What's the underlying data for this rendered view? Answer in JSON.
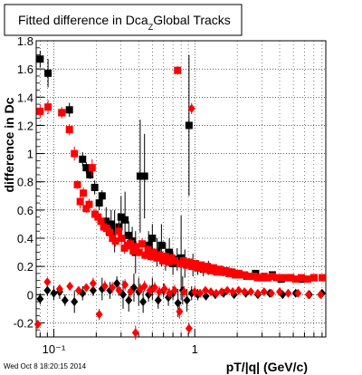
{
  "title": {
    "main": "Fitted difference in Dca",
    "sub": "Z",
    "tail": "Global Tracks"
  },
  "timestamp": "Wed Oct  8 18:20:15 2014",
  "chart_data": {
    "type": "scatter",
    "title": "Fitted difference in Dca_Z Global Tracks",
    "xlabel": "pT/|q| (GeV/c)",
    "ylabel": "difference in Dc",
    "xscale": "log",
    "xlim": [
      0.075,
      8.5
    ],
    "ylim": [
      -0.3,
      1.8
    ],
    "grid": true,
    "xticks": [
      {
        "v": 0.1,
        "label": "10⁻¹"
      },
      {
        "v": 1,
        "label": "1"
      }
    ],
    "yticks": [
      {
        "v": -0.2,
        "label": "-0.2"
      },
      {
        "v": 0,
        "label": "0"
      },
      {
        "v": 0.2,
        "label": "0.2"
      },
      {
        "v": 0.4,
        "label": "0.4"
      },
      {
        "v": 0.6,
        "label": "0.6"
      },
      {
        "v": 0.8,
        "label": "0.8"
      },
      {
        "v": 1,
        "label": "1"
      },
      {
        "v": 1.2,
        "label": "1.2"
      },
      {
        "v": 1.4,
        "label": "1.4"
      },
      {
        "v": 1.6,
        "label": "1.6"
      },
      {
        "v": 1.8,
        "label": "1.8"
      }
    ],
    "series": [
      {
        "marker": "square",
        "color": "#000000",
        "points": [
          [
            0.08,
            1.67,
            0.06
          ],
          [
            0.091,
            1.57,
            0.1
          ],
          [
            0.114,
            1.29,
            0.03
          ],
          [
            0.129,
            1.31,
            0.05
          ],
          [
            0.16,
            0.96,
            0.05
          ],
          [
            0.17,
            0.9,
            0.04
          ],
          [
            0.18,
            0.85,
            0.03
          ],
          [
            0.195,
            0.76,
            0.05
          ],
          [
            0.21,
            0.65,
            0.05
          ],
          [
            0.22,
            0.7,
            0.04
          ],
          [
            0.235,
            0.52,
            0.1
          ],
          [
            0.255,
            0.5,
            0.1
          ],
          [
            0.27,
            0.45,
            0.15
          ],
          [
            0.29,
            0.48,
            0.1
          ],
          [
            0.3,
            0.55,
            0.15
          ],
          [
            0.32,
            0.53,
            0.2
          ],
          [
            0.34,
            0.42,
            0.1
          ],
          [
            0.36,
            0.38,
            0.1
          ],
          [
            0.38,
            0.3,
            0.15
          ],
          [
            0.41,
            0.84,
            0.4
          ],
          [
            0.44,
            0.84,
            0.3
          ],
          [
            0.47,
            0.35,
            0.1
          ],
          [
            0.5,
            0.4,
            0.1
          ],
          [
            0.54,
            0.3,
            0.1
          ],
          [
            0.58,
            0.35,
            0.15
          ],
          [
            0.62,
            0.27,
            0.1
          ],
          [
            0.66,
            0.3,
            0.1
          ],
          [
            0.7,
            0.22,
            0.08
          ],
          [
            0.75,
            0.25,
            0.08
          ],
          [
            0.8,
            0.26,
            0.3
          ],
          [
            0.85,
            0.22,
            0.1
          ],
          [
            0.91,
            1.2,
            0.5
          ],
          [
            0.97,
            0.21,
            0.08
          ],
          [
            1.05,
            0.19,
            0.05
          ],
          [
            1.15,
            0.18,
            0.05
          ],
          [
            1.25,
            0.19,
            0.05
          ],
          [
            1.4,
            0.17,
            0.03
          ],
          [
            1.6,
            0.16,
            0.03
          ],
          [
            1.8,
            0.16,
            0.03
          ],
          [
            2.05,
            0.15,
            0.02
          ],
          [
            2.35,
            0.13,
            0.02
          ],
          [
            2.7,
            0.15,
            0.02
          ],
          [
            3.1,
            0.12,
            0.02
          ],
          [
            3.55,
            0.14,
            0.02
          ],
          [
            4.1,
            0.11,
            0.02
          ],
          [
            4.8,
            0.12,
            0.02
          ],
          [
            5.8,
            0.11,
            0.02
          ],
          [
            7.0,
            0.12,
            0.02
          ]
        ]
      },
      {
        "marker": "square",
        "color": "#ff0000",
        "points": [
          [
            0.08,
            1.3,
            0.05
          ],
          [
            0.091,
            1.33,
            0.05
          ],
          [
            0.114,
            1.29,
            0.04
          ],
          [
            0.129,
            1.17,
            0.04
          ],
          [
            0.14,
            1.0,
            0.05
          ],
          [
            0.147,
            0.78,
            0.03
          ],
          [
            0.154,
            0.66,
            0.05
          ],
          [
            0.162,
            0.72,
            0.04
          ],
          [
            0.17,
            0.61,
            0.03
          ],
          [
            0.178,
            0.64,
            0.04
          ],
          [
            0.187,
            0.9,
            0.06
          ],
          [
            0.196,
            0.57,
            0.04
          ],
          [
            0.206,
            0.55,
            0.03
          ],
          [
            0.216,
            0.52,
            0.03
          ],
          [
            0.226,
            0.48,
            0.03
          ],
          [
            0.237,
            0.47,
            0.03
          ],
          [
            0.249,
            0.44,
            0.03
          ],
          [
            0.261,
            0.4,
            0.03
          ],
          [
            0.274,
            0.38,
            0.04
          ],
          [
            0.288,
            0.45,
            0.05
          ],
          [
            0.302,
            0.4,
            0.04
          ],
          [
            0.317,
            0.33,
            0.04
          ],
          [
            0.333,
            0.35,
            0.04
          ],
          [
            0.349,
            0.36,
            0.04
          ],
          [
            0.366,
            0.31,
            0.03
          ],
          [
            0.384,
            0.34,
            0.04
          ],
          [
            0.403,
            0.3,
            0.03
          ],
          [
            0.423,
            0.36,
            0.04
          ],
          [
            0.444,
            0.28,
            0.03
          ],
          [
            0.466,
            0.32,
            0.03
          ],
          [
            0.489,
            0.27,
            0.03
          ],
          [
            0.513,
            0.3,
            0.03
          ],
          [
            0.538,
            0.26,
            0.03
          ],
          [
            0.565,
            0.28,
            0.03
          ],
          [
            0.593,
            0.24,
            0.03
          ],
          [
            0.622,
            0.27,
            0.03
          ],
          [
            0.653,
            0.23,
            0.03
          ],
          [
            0.685,
            0.26,
            0.03
          ],
          [
            0.719,
            0.24,
            0.03
          ],
          [
            0.755,
            1.59,
            0.03
          ],
          [
            0.792,
            0.22,
            0.03
          ],
          [
            0.831,
            0.24,
            0.03
          ],
          [
            0.872,
            0.21,
            0.03
          ],
          [
            0.915,
            0.23,
            0.03
          ],
          [
            0.96,
            0.2,
            0.02
          ],
          [
            1.01,
            0.22,
            0.02
          ],
          [
            1.06,
            0.19,
            0.02
          ],
          [
            1.11,
            0.21,
            0.02
          ],
          [
            1.17,
            0.18,
            0.02
          ],
          [
            1.23,
            0.2,
            0.02
          ],
          [
            1.29,
            0.17,
            0.02
          ],
          [
            1.36,
            0.19,
            0.02
          ],
          [
            1.43,
            0.16,
            0.02
          ],
          [
            1.5,
            0.18,
            0.02
          ],
          [
            1.58,
            0.16,
            0.02
          ],
          [
            1.66,
            0.17,
            0.02
          ],
          [
            1.75,
            0.15,
            0.02
          ],
          [
            1.84,
            0.16,
            0.02
          ],
          [
            1.94,
            0.14,
            0.02
          ],
          [
            2.04,
            0.15,
            0.02
          ],
          [
            2.15,
            0.14,
            0.02
          ],
          [
            2.26,
            0.14,
            0.02
          ],
          [
            2.38,
            0.13,
            0.02
          ],
          [
            2.51,
            0.13,
            0.02
          ],
          [
            2.64,
            0.13,
            0.02
          ],
          [
            2.78,
            0.12,
            0.02
          ],
          [
            2.93,
            0.12,
            0.02
          ],
          [
            3.1,
            0.13,
            0.02
          ],
          [
            3.3,
            0.12,
            0.02
          ],
          [
            3.55,
            0.13,
            0.02
          ],
          [
            3.8,
            0.12,
            0.02
          ],
          [
            4.1,
            0.12,
            0.02
          ],
          [
            4.4,
            0.12,
            0.02
          ],
          [
            4.8,
            0.12,
            0.02
          ],
          [
            5.2,
            0.11,
            0.02
          ],
          [
            5.7,
            0.12,
            0.02
          ],
          [
            6.3,
            0.11,
            0.02
          ],
          [
            7.0,
            0.12,
            0.02
          ],
          [
            8.0,
            0.12,
            0.02
          ]
        ]
      },
      {
        "marker": "diamond",
        "color": "#000000",
        "points": [
          [
            0.08,
            -0.03,
            0.04
          ],
          [
            0.09,
            0.03,
            0.04
          ],
          [
            0.1,
            0.01,
            0.05
          ],
          [
            0.11,
            0.02,
            0.05
          ],
          [
            0.12,
            -0.04,
            0.04
          ],
          [
            0.14,
            -0.05,
            0.08
          ],
          [
            0.16,
            0.01,
            0.05
          ],
          [
            0.19,
            0.03,
            0.04
          ],
          [
            0.22,
            0.04,
            0.08
          ],
          [
            0.25,
            0.03,
            0.06
          ],
          [
            0.28,
            0.08,
            0.05
          ],
          [
            0.31,
            0.0,
            0.1
          ],
          [
            0.34,
            -0.04,
            0.08
          ],
          [
            0.37,
            0.05,
            0.1
          ],
          [
            0.4,
            0.02,
            0.1
          ],
          [
            0.43,
            -0.05,
            0.08
          ],
          [
            0.47,
            0.0,
            0.05
          ],
          [
            0.5,
            0.04,
            0.08
          ],
          [
            0.55,
            -0.04,
            0.06
          ],
          [
            0.6,
            0.03,
            0.05
          ],
          [
            0.65,
            -0.02,
            0.06
          ],
          [
            0.7,
            0.01,
            0.05
          ],
          [
            0.76,
            -0.06,
            0.1
          ],
          [
            0.82,
            0.03,
            0.1
          ],
          [
            0.88,
            -0.04,
            0.08
          ],
          [
            0.95,
            0.01,
            0.05
          ],
          [
            1.05,
            0.0,
            0.04
          ],
          [
            1.2,
            -0.01,
            0.03
          ],
          [
            1.4,
            0.0,
            0.03
          ],
          [
            1.6,
            0.01,
            0.03
          ],
          [
            1.9,
            0.0,
            0.02
          ],
          [
            2.3,
            0.01,
            0.02
          ],
          [
            2.8,
            0.0,
            0.02
          ],
          [
            3.4,
            0.01,
            0.02
          ],
          [
            4.2,
            0.0,
            0.02
          ],
          [
            5.2,
            0.01,
            0.02
          ],
          [
            6.5,
            0.0,
            0.02
          ],
          [
            8.0,
            0.01,
            0.02
          ]
        ]
      },
      {
        "marker": "diamond",
        "color": "#ff0000",
        "points": [
          [
            0.077,
            -0.21,
            0.03
          ],
          [
            0.09,
            0.09,
            0.03
          ],
          [
            0.11,
            0.04,
            0.03
          ],
          [
            0.13,
            0.06,
            0.03
          ],
          [
            0.15,
            0.03,
            0.03
          ],
          [
            0.17,
            0.05,
            0.03
          ],
          [
            0.19,
            0.08,
            0.04
          ],
          [
            0.21,
            -0.14,
            0.04
          ],
          [
            0.23,
            0.06,
            0.04
          ],
          [
            0.26,
            0.05,
            0.04
          ],
          [
            0.29,
            0.03,
            0.04
          ],
          [
            0.32,
            0.07,
            0.04
          ],
          [
            0.35,
            0.02,
            0.04
          ],
          [
            0.38,
            -0.27,
            0.05
          ],
          [
            0.41,
            0.04,
            0.04
          ],
          [
            0.44,
            0.06,
            0.04
          ],
          [
            0.48,
            0.03,
            0.04
          ],
          [
            0.52,
            0.05,
            0.04
          ],
          [
            0.56,
            0.02,
            0.04
          ],
          [
            0.61,
            0.04,
            0.04
          ],
          [
            0.66,
            0.01,
            0.04
          ],
          [
            0.72,
            0.03,
            0.04
          ],
          [
            0.78,
            -0.12,
            0.05
          ],
          [
            0.84,
            0.02,
            0.04
          ],
          [
            0.91,
            -0.24,
            0.04
          ],
          [
            0.95,
            1.32,
            0.04
          ],
          [
            1.0,
            0.02,
            0.04
          ],
          [
            1.09,
            0.01,
            0.03
          ],
          [
            1.19,
            0.03,
            0.03
          ],
          [
            1.3,
            0.02,
            0.03
          ],
          [
            1.42,
            0.01,
            0.03
          ],
          [
            1.55,
            0.02,
            0.03
          ],
          [
            1.7,
            0.03,
            0.03
          ],
          [
            1.86,
            0.02,
            0.03
          ],
          [
            2.05,
            0.03,
            0.03
          ],
          [
            2.25,
            0.02,
            0.03
          ],
          [
            2.5,
            0.02,
            0.02
          ],
          [
            2.8,
            0.01,
            0.02
          ],
          [
            3.1,
            0.02,
            0.02
          ],
          [
            3.5,
            0.01,
            0.02
          ],
          [
            4.0,
            0.02,
            0.02
          ],
          [
            4.6,
            0.01,
            0.02
          ],
          [
            5.4,
            0.01,
            0.02
          ],
          [
            6.4,
            0.0,
            0.02
          ],
          [
            7.8,
            0.0,
            0.02
          ]
        ]
      }
    ]
  }
}
